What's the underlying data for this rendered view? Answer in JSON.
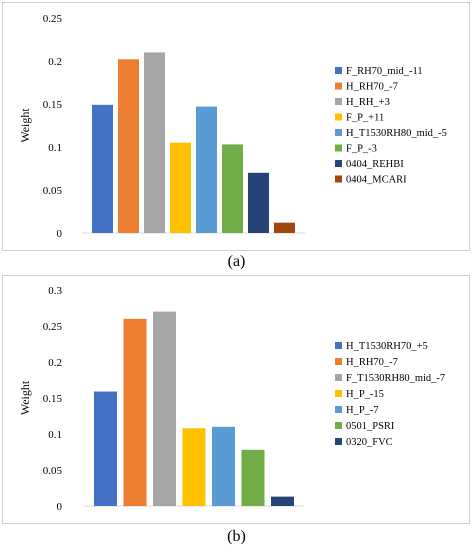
{
  "chart_data": [
    {
      "type": "bar",
      "caption": "(a)",
      "ylabel": "Weight",
      "ylim": [
        0,
        0.25
      ],
      "yticks": [
        "0",
        "0.05",
        "0.1",
        "0.15",
        "0.2",
        "0.25"
      ],
      "legend_position": "right",
      "grid": false,
      "series": [
        {
          "name": "F_RH70_mid_-11",
          "value": 0.149,
          "color": "#4472C4"
        },
        {
          "name": "H_RH70_-7",
          "value": 0.202,
          "color": "#ED7D31"
        },
        {
          "name": "H_RH_+3",
          "value": 0.21,
          "color": "#A5A5A5"
        },
        {
          "name": "F_P_+11",
          "value": 0.105,
          "color": "#FFC000"
        },
        {
          "name": "H_T1530RH80_mid_-5",
          "value": 0.147,
          "color": "#5B9BD5"
        },
        {
          "name": "F_P_-3",
          "value": 0.103,
          "color": "#70AD47"
        },
        {
          "name": "0404_REHBI",
          "value": 0.07,
          "color": "#264478"
        },
        {
          "name": "0404_MCARI",
          "value": 0.012,
          "color": "#9E480E"
        }
      ]
    },
    {
      "type": "bar",
      "caption": "(b)",
      "ylabel": "Weight",
      "ylim": [
        0,
        0.3
      ],
      "yticks": [
        "0",
        "0.05",
        "0.1",
        "0.15",
        "0.2",
        "0.25",
        "0.3"
      ],
      "legend_position": "right",
      "grid": false,
      "series": [
        {
          "name": "H_T1530RH70_+5",
          "value": 0.159,
          "color": "#4472C4"
        },
        {
          "name": "H_RH70_-7",
          "value": 0.26,
          "color": "#ED7D31"
        },
        {
          "name": "F_T1530RH80_mid_-7",
          "value": 0.27,
          "color": "#A5A5A5"
        },
        {
          "name": "H_P_-15",
          "value": 0.108,
          "color": "#FFC000"
        },
        {
          "name": "H_P_-7",
          "value": 0.11,
          "color": "#5B9BD5"
        },
        {
          "name": "0501_PSRI",
          "value": 0.078,
          "color": "#70AD47"
        },
        {
          "name": "0320_FVC",
          "value": 0.013,
          "color": "#264478"
        }
      ]
    }
  ]
}
